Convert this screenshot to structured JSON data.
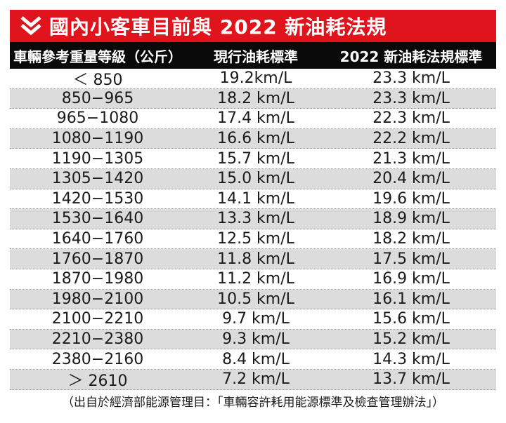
{
  "title": "國內小客車目前與 2022 新油耗法規",
  "headers": [
    "車輛參考重量等級（公斤）",
    "現行油耗標準",
    "2022 新油耗法規標準"
  ],
  "rows": [
    [
      "＜ 850",
      "19.2km/L",
      "23.3 km/L"
    ],
    [
      "850−965",
      "18.2 km/L",
      "23.3 km/L"
    ],
    [
      "965−1080",
      "17.4 km/L",
      "22.3 km/L"
    ],
    [
      "1080−1190",
      "16.6 km/L",
      "22.2 km/L"
    ],
    [
      "1190−1305",
      "15.7 km/L",
      "21.3 km/L"
    ],
    [
      "1305−1420",
      "15.0 km/L",
      "20.4 km/L"
    ],
    [
      "1420−1530",
      "14.1 km/L",
      "19.6 km/L"
    ],
    [
      "1530−1640",
      "13.3 km/L",
      "18.9 km/L"
    ],
    [
      "1640−1760",
      "12.5 km/L",
      "18.2 km/L"
    ],
    [
      "1760−1870",
      "11.8 km/L",
      "17.5 km/L"
    ],
    [
      "1870−1980",
      "11.2 km/L",
      "16.9 km/L"
    ],
    [
      "1980−2100",
      "10.5 km/L",
      "16.1 km/L"
    ],
    [
      "2100−2210",
      "9.7 km/L",
      "15.6 km/L"
    ],
    [
      "2210−2380",
      "9.3 km/L",
      "15.2 km/L"
    ],
    [
      "2380−2160",
      "8.4 km/L",
      "14.3 km/L"
    ],
    [
      "＞ 2610",
      "7.2 km/L",
      "13.7 km/L"
    ]
  ],
  "source_note": "（出自於經濟部能源管理目：「車輛容許耗用能源標準及檢查管理辦法」）",
  "colors": {
    "title_bg": "#e0141c",
    "header_bg": "#0a0a0a",
    "alt_row_bg": "#dcdcdc"
  },
  "icons": {
    "title": "double-chevron-down-icon"
  }
}
